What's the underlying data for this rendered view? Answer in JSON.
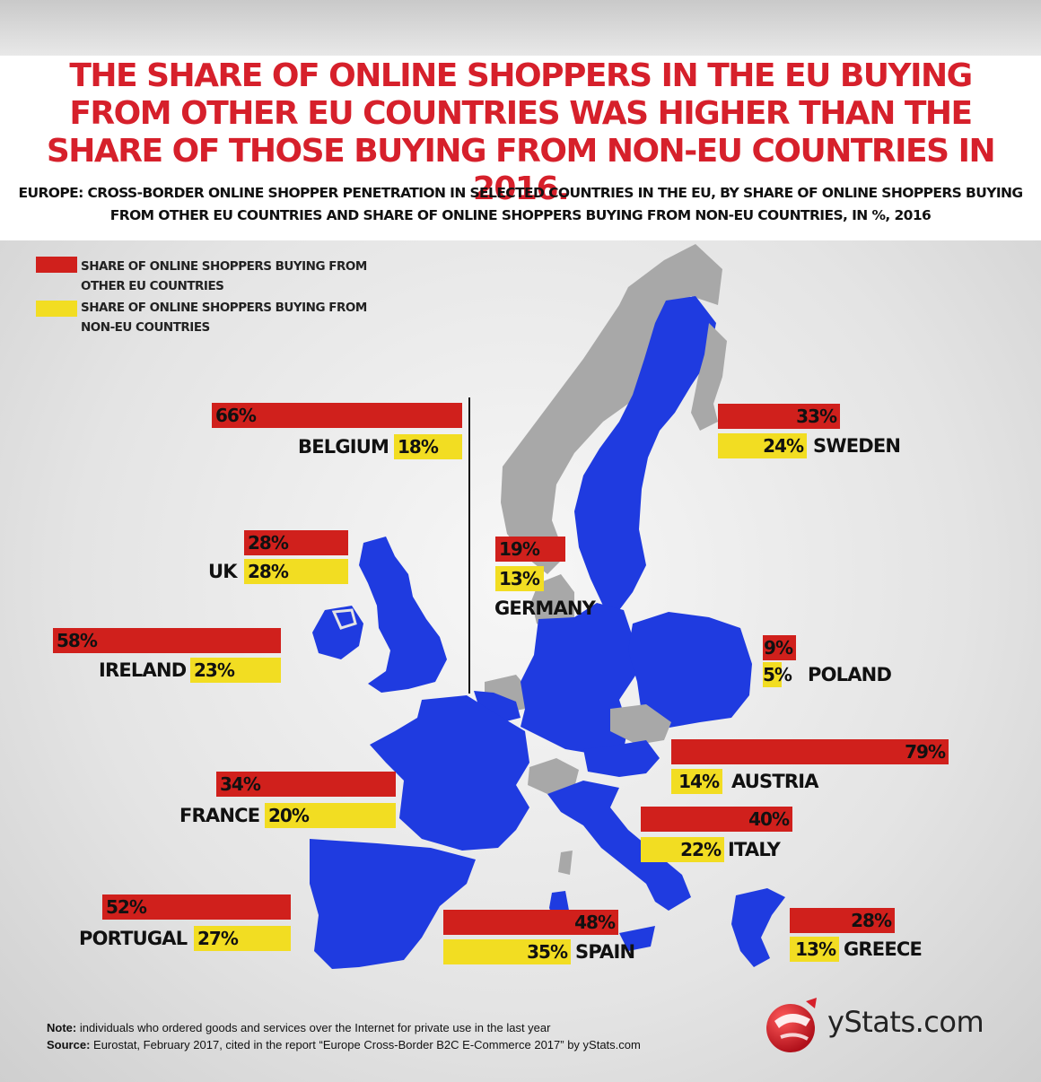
{
  "title": "THE SHARE OF ONLINE SHOPPERS IN THE EU BUYING FROM OTHER EU COUNTRIES WAS HIGHER THAN THE SHARE OF THOSE BUYING FROM NON-EU COUNTRIES IN 2016.",
  "subtitle": "EUROPE: CROSS-BORDER ONLINE SHOPPER PENETRATION IN SELECTED COUNTRIES IN THE EU, BY SHARE OF ONLINE SHOPPERS BUYING FROM OTHER EU COUNTRIES AND SHARE OF ONLINE SHOPPERS BUYING FROM NON-EU COUNTRIES, IN %, 2016",
  "legend": {
    "eu_label": "SHARE OF ONLINE SHOPPERS BUYING FROM OTHER EU COUNTRIES",
    "noneu_label": "SHARE OF ONLINE SHOPPERS BUYING FROM NON-EU COUNTRIES"
  },
  "colors": {
    "eu": "#d0201c",
    "noneu": "#f2dd22",
    "title": "#d6202b",
    "map_eu": "#1f3be0",
    "map_other": "#a8a8a8"
  },
  "chart_data": {
    "type": "bar",
    "title": "THE SHARE OF ONLINE SHOPPERS IN THE EU BUYING FROM OTHER EU COUNTRIES WAS HIGHER THAN THE SHARE OF THOSE BUYING FROM NON-EU COUNTRIES IN 2016.",
    "unit": "%",
    "categories": [
      "BELGIUM",
      "SWEDEN",
      "UK",
      "GERMANY",
      "IRELAND",
      "POLAND",
      "AUSTRIA",
      "FRANCE",
      "ITALY",
      "PORTUGAL",
      "SPAIN",
      "GREECE"
    ],
    "series": [
      {
        "name": "SHARE OF ONLINE SHOPPERS BUYING FROM OTHER EU COUNTRIES",
        "values": [
          66,
          33,
          28,
          19,
          58,
          9,
          79,
          34,
          40,
          52,
          48,
          28
        ]
      },
      {
        "name": "SHARE OF ONLINE SHOPPERS BUYING FROM NON-EU COUNTRIES",
        "values": [
          18,
          24,
          28,
          13,
          23,
          5,
          14,
          20,
          22,
          27,
          35,
          13
        ]
      }
    ],
    "value_labels": {
      "eu": [
        "66%",
        "33%",
        "28%",
        "19%",
        "58%",
        "9%",
        "79%",
        "34%",
        "40%",
        "52%",
        "48%",
        "28%"
      ],
      "noneu": [
        "18%",
        "24%",
        "28%",
        "13%",
        "23%",
        "5%",
        "14%",
        "20%",
        "22%",
        "27%",
        "35%",
        "13%"
      ]
    }
  },
  "footnote": {
    "note_label": "Note:",
    "note_text": " individuals who ordered goods and services over the Internet for private use in the last year",
    "source_label": "Source:",
    "source_text": " Eurostat, February 2017, cited in the report “Europe Cross-Border B2C E-Commerce 2017” by yStats.com"
  },
  "logo": {
    "text": "yStats.com",
    "icon": "globe-logo-icon"
  }
}
